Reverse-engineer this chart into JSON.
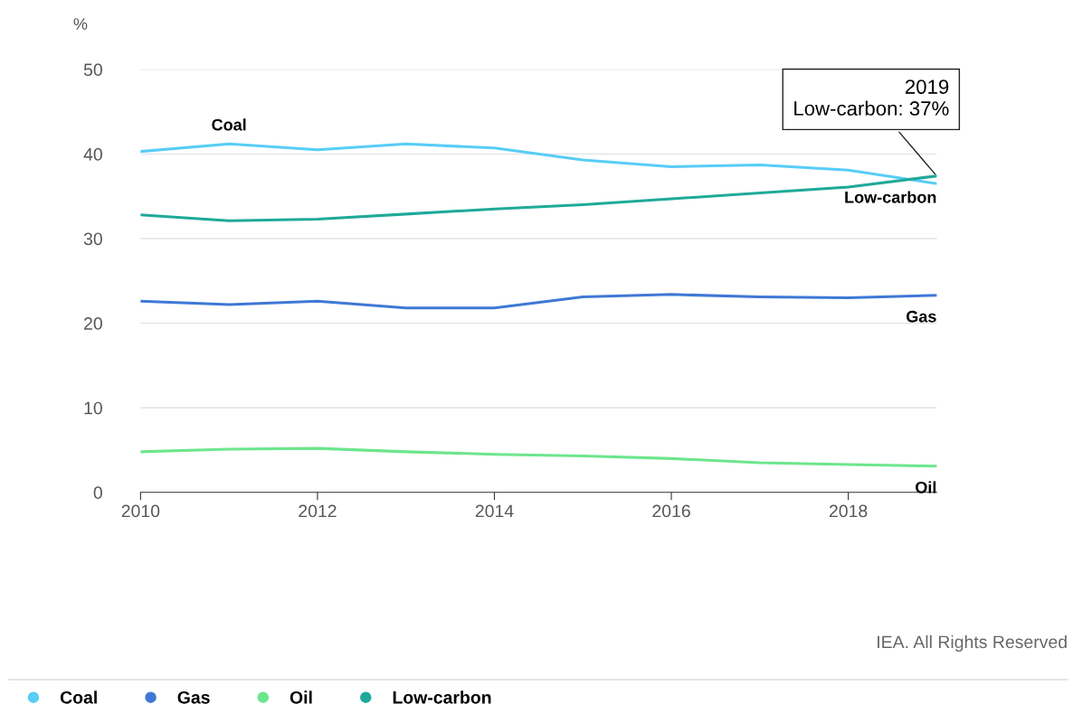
{
  "chart_data": {
    "type": "line",
    "ylabel": "%",
    "x": [
      2010,
      2011,
      2012,
      2013,
      2014,
      2015,
      2016,
      2017,
      2018,
      2019
    ],
    "series": [
      {
        "name": "Coal",
        "color": "#57cdf7",
        "values": [
          40.3,
          41.2,
          40.5,
          41.2,
          40.7,
          39.3,
          38.5,
          38.7,
          38.1,
          36.5
        ]
      },
      {
        "name": "Gas",
        "color": "#3f78d6",
        "values": [
          22.6,
          22.2,
          22.6,
          21.8,
          21.8,
          23.1,
          23.4,
          23.1,
          23.0,
          23.3
        ]
      },
      {
        "name": "Oil",
        "color": "#6ce68c",
        "values": [
          4.8,
          5.1,
          5.2,
          4.8,
          4.5,
          4.3,
          4.0,
          3.5,
          3.3,
          3.1
        ]
      },
      {
        "name": "Low-carbon",
        "color": "#1fa99a",
        "values": [
          32.8,
          32.1,
          32.3,
          32.9,
          33.5,
          34.0,
          34.7,
          35.4,
          36.1,
          37.4
        ]
      }
    ],
    "xlim": [
      2010,
      2019
    ],
    "xticks": [
      2010,
      2012,
      2014,
      2016,
      2018
    ],
    "ylim": [
      0,
      50
    ],
    "yticks": [
      0,
      10,
      20,
      30,
      40,
      50
    ],
    "grid": "y",
    "legend": "bottom",
    "marker": "none",
    "line_style": "solid",
    "annotations": [
      {
        "text": "2019\nLow-carbon: 37%",
        "x": 2019,
        "y": 37.4
      },
      "IEA. All Rights Reserved"
    ]
  }
}
